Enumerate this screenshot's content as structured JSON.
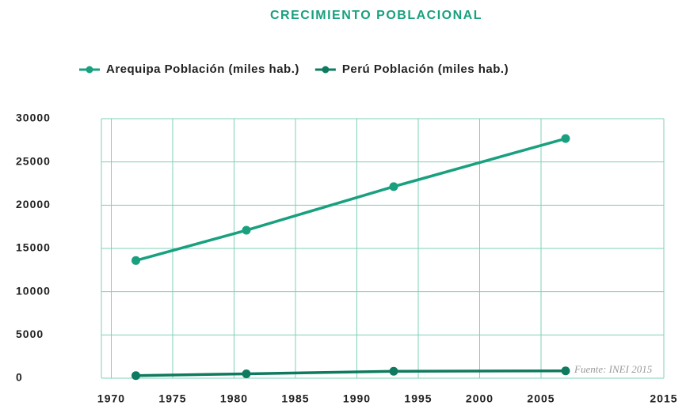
{
  "chart_data": {
    "type": "line",
    "title": "CRECIMIENTO POBLACIONAL",
    "x": [
      1972,
      1981,
      1993,
      2007
    ],
    "series": [
      {
        "name": "Arequipa Población (miles hab.)",
        "color": "#18a07f",
        "values": [
          13600,
          17100,
          22150,
          27700
        ]
      },
      {
        "name": "Perú Población (miles hab.)",
        "color": "#0e7a5f",
        "values": [
          300,
          500,
          800,
          850
        ]
      }
    ],
    "xlim": [
      1970,
      2015
    ],
    "xticks": [
      1970,
      1975,
      1980,
      1985,
      1990,
      1995,
      2000,
      2005,
      2015
    ],
    "ylim": [
      0,
      30000
    ],
    "yticks": [
      0,
      5000,
      10000,
      15000,
      20000,
      25000,
      30000
    ],
    "grid": true,
    "legend": "top",
    "annotation": "Fuente: INEI 2015"
  }
}
